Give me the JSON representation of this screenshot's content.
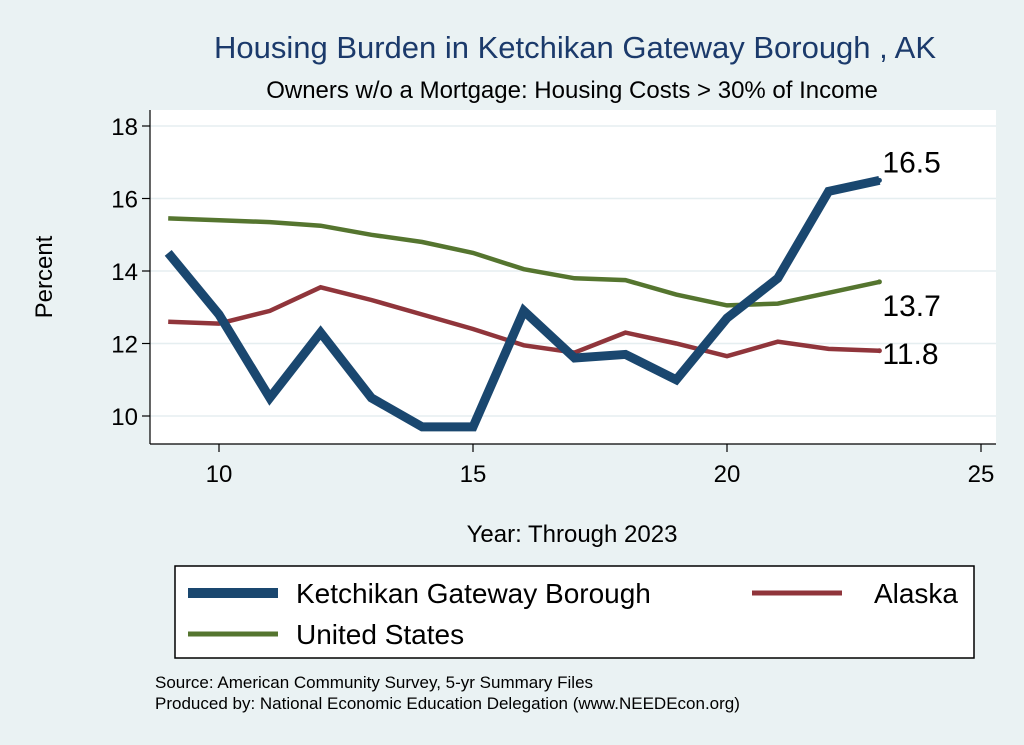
{
  "chart_data": {
    "type": "line",
    "title": "Housing Burden in Ketchikan Gateway Borough , AK",
    "subtitle": "Owners w/o a Mortgage: Housing Costs > 30% of Income",
    "xlabel": "Year: Through 2023",
    "ylabel": "Percent",
    "xlim": [
      9,
      25
    ],
    "ylim": [
      9.3,
      18.4
    ],
    "xticks": [
      10,
      15,
      20,
      25
    ],
    "yticks": [
      10,
      12,
      14,
      16,
      18
    ],
    "grid": true,
    "legend_position": "bottom",
    "x": [
      9,
      10,
      11,
      12,
      13,
      14,
      15,
      16,
      17,
      18,
      19,
      20,
      21,
      22,
      23
    ],
    "series": [
      {
        "name": "Ketchikan Gateway Borough",
        "color": "#1a476f",
        "values": [
          14.5,
          12.8,
          10.5,
          12.3,
          10.5,
          9.7,
          9.7,
          12.9,
          11.6,
          11.7,
          11.0,
          12.7,
          13.8,
          16.2,
          16.5
        ],
        "end_label": "16.5"
      },
      {
        "name": "Alaska",
        "color": "#90353b",
        "values": [
          12.6,
          12.55,
          12.9,
          13.55,
          13.2,
          12.8,
          12.4,
          11.95,
          11.75,
          12.3,
          12.0,
          11.65,
          12.05,
          11.85,
          11.8
        ],
        "end_label": "11.8"
      },
      {
        "name": "United States",
        "color": "#55752f",
        "values": [
          15.45,
          15.4,
          15.35,
          15.25,
          15.0,
          14.8,
          14.5,
          14.05,
          13.8,
          13.75,
          13.35,
          13.05,
          13.1,
          13.4,
          13.7
        ],
        "end_label": "13.7"
      }
    ]
  },
  "footer": {
    "source": "Source: American Community Survey, 5-yr Summary Files",
    "producer": "Produced by: National Economic Education Delegation (www.NEEDEcon.org)"
  }
}
